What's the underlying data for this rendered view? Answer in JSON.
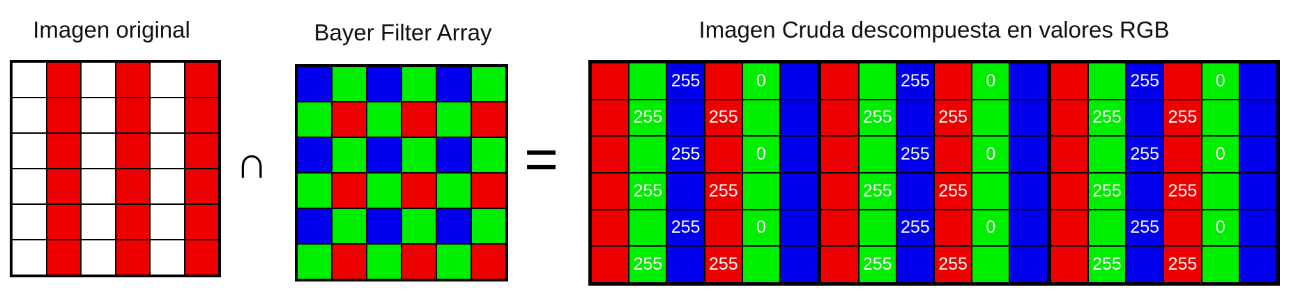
{
  "titles": {
    "original": "Imagen original",
    "bayer": "Bayer Filter Array",
    "raw": "Imagen Cruda descompuesta en valores RGB"
  },
  "operators": {
    "intersect": "∩",
    "equals": "="
  },
  "colors": {
    "R": "#ee0000",
    "G": "#00ee00",
    "B": "#0000ee",
    "W": "#ffffff"
  },
  "original_grid": [
    [
      "W",
      "R",
      "W",
      "R",
      "W",
      "R"
    ],
    [
      "W",
      "R",
      "W",
      "R",
      "W",
      "R"
    ],
    [
      "W",
      "R",
      "W",
      "R",
      "W",
      "R"
    ],
    [
      "W",
      "R",
      "W",
      "R",
      "W",
      "R"
    ],
    [
      "W",
      "R",
      "W",
      "R",
      "W",
      "R"
    ],
    [
      "W",
      "R",
      "W",
      "R",
      "W",
      "R"
    ]
  ],
  "bayer_grid": [
    [
      "B",
      "G",
      "B",
      "G",
      "B",
      "G"
    ],
    [
      "G",
      "R",
      "G",
      "R",
      "G",
      "R"
    ],
    [
      "B",
      "G",
      "B",
      "G",
      "B",
      "G"
    ],
    [
      "G",
      "R",
      "G",
      "R",
      "G",
      "R"
    ],
    [
      "B",
      "G",
      "B",
      "G",
      "B",
      "G"
    ],
    [
      "G",
      "R",
      "G",
      "R",
      "G",
      "R"
    ]
  ],
  "raw_blocks": [
    {
      "colors": [
        [
          "R",
          "G",
          "B",
          "R",
          "G",
          "B"
        ],
        [
          "R",
          "G",
          "B",
          "R",
          "G",
          "B"
        ],
        [
          "R",
          "G",
          "B",
          "R",
          "G",
          "B"
        ],
        [
          "R",
          "G",
          "B",
          "R",
          "G",
          "B"
        ],
        [
          "R",
          "G",
          "B",
          "R",
          "G",
          "B"
        ],
        [
          "R",
          "G",
          "B",
          "R",
          "G",
          "B"
        ]
      ],
      "values": [
        [
          "",
          "",
          "255",
          "",
          "0",
          ""
        ],
        [
          "",
          "255",
          "",
          "255",
          "",
          ""
        ],
        [
          "",
          "",
          "255",
          "",
          "0",
          ""
        ],
        [
          "",
          "255",
          "",
          "255",
          "",
          ""
        ],
        [
          "",
          "",
          "255",
          "",
          "0",
          ""
        ],
        [
          "",
          "255",
          "",
          "255",
          "",
          ""
        ]
      ]
    },
    {
      "colors": [
        [
          "R",
          "G",
          "B",
          "R",
          "G",
          "B"
        ],
        [
          "R",
          "G",
          "B",
          "R",
          "G",
          "B"
        ],
        [
          "R",
          "G",
          "B",
          "R",
          "G",
          "B"
        ],
        [
          "R",
          "G",
          "B",
          "R",
          "G",
          "B"
        ],
        [
          "R",
          "G",
          "B",
          "R",
          "G",
          "B"
        ],
        [
          "R",
          "G",
          "B",
          "R",
          "G",
          "B"
        ]
      ],
      "values": [
        [
          "",
          "",
          "255",
          "",
          "0",
          ""
        ],
        [
          "",
          "255",
          "",
          "255",
          "",
          ""
        ],
        [
          "",
          "",
          "255",
          "",
          "0",
          ""
        ],
        [
          "",
          "255",
          "",
          "255",
          "",
          ""
        ],
        [
          "",
          "",
          "255",
          "",
          "0",
          ""
        ],
        [
          "",
          "255",
          "",
          "255",
          "",
          ""
        ]
      ]
    },
    {
      "colors": [
        [
          "R",
          "G",
          "B",
          "R",
          "G",
          "B"
        ],
        [
          "R",
          "G",
          "B",
          "R",
          "G",
          "B"
        ],
        [
          "R",
          "G",
          "B",
          "R",
          "G",
          "B"
        ],
        [
          "R",
          "G",
          "B",
          "R",
          "G",
          "B"
        ],
        [
          "R",
          "G",
          "B",
          "R",
          "G",
          "B"
        ],
        [
          "R",
          "G",
          "B",
          "R",
          "G",
          "B"
        ]
      ],
      "values": [
        [
          "",
          "",
          "255",
          "",
          "0",
          ""
        ],
        [
          "",
          "255",
          "",
          "255",
          "",
          ""
        ],
        [
          "",
          "",
          "255",
          "",
          "0",
          ""
        ],
        [
          "",
          "255",
          "",
          "255",
          "",
          ""
        ],
        [
          "",
          "",
          "255",
          "",
          "0",
          ""
        ],
        [
          "",
          "255",
          "",
          "255",
          "",
          ""
        ]
      ]
    }
  ]
}
